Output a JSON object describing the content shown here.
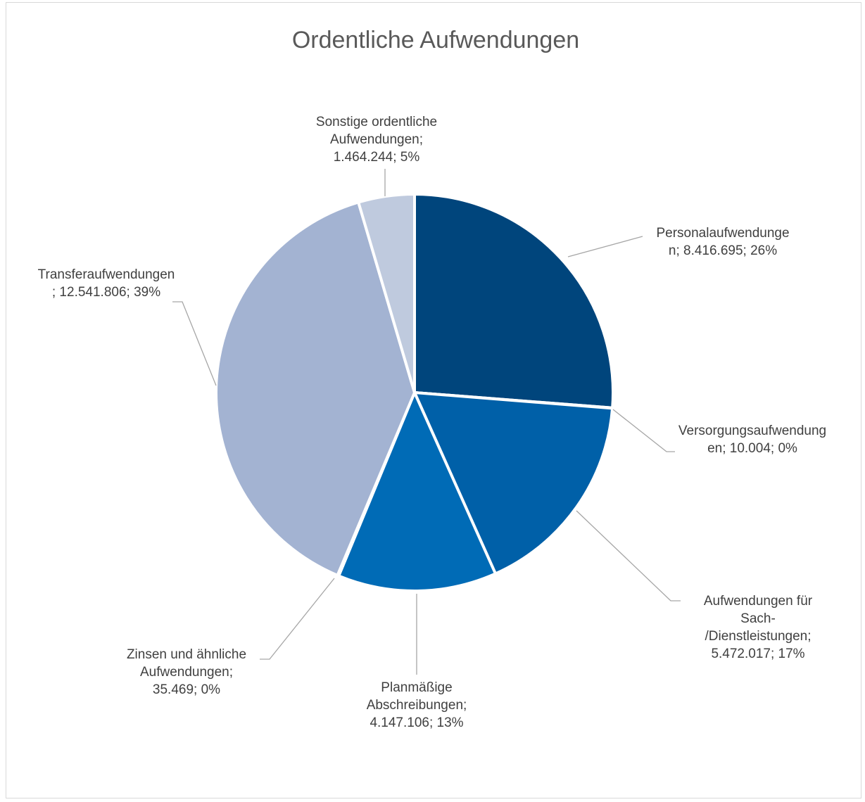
{
  "chart_data": {
    "type": "pie",
    "title": "Ordentliche Aufwendungen",
    "slices": [
      {
        "key": "personal",
        "label_lines": [
          "Personalaufwendunge",
          "n; 8.416.695; 26%"
        ],
        "value": 8416695,
        "percent": "26%",
        "color": "#00457c"
      },
      {
        "key": "versorgung",
        "label_lines": [
          "Versorgungsaufwendung",
          "en; 10.004; 0%"
        ],
        "value": 10004,
        "percent": "0%",
        "color": "#004f8f"
      },
      {
        "key": "sach",
        "label_lines": [
          "Aufwendungen für",
          "Sach-",
          "/Dienstleistungen;",
          "5.472.017; 17%"
        ],
        "value": 5472017,
        "percent": "17%",
        "color": "#0060a8"
      },
      {
        "key": "abschreibungen",
        "label_lines": [
          "Planmäßige",
          "Abschreibungen;",
          "4.147.106; 13%"
        ],
        "value": 4147106,
        "percent": "13%",
        "color": "#006bb6"
      },
      {
        "key": "zinsen",
        "label_lines": [
          "Zinsen und ähnliche",
          "Aufwendungen;",
          "35.469; 0%"
        ],
        "value": 35469,
        "percent": "0%",
        "color": "#7b9ac9"
      },
      {
        "key": "transfer",
        "label_lines": [
          "Transferaufwendungen",
          "; 12.541.806; 39%"
        ],
        "value": 12541806,
        "percent": "39%",
        "color": "#a3b3d2"
      },
      {
        "key": "sonstige",
        "label_lines": [
          "Sonstige ordentliche",
          "Aufwendungen;",
          "1.464.244; 5%"
        ],
        "value": 1464244,
        "percent": "5%",
        "color": "#bfcade"
      }
    ]
  }
}
